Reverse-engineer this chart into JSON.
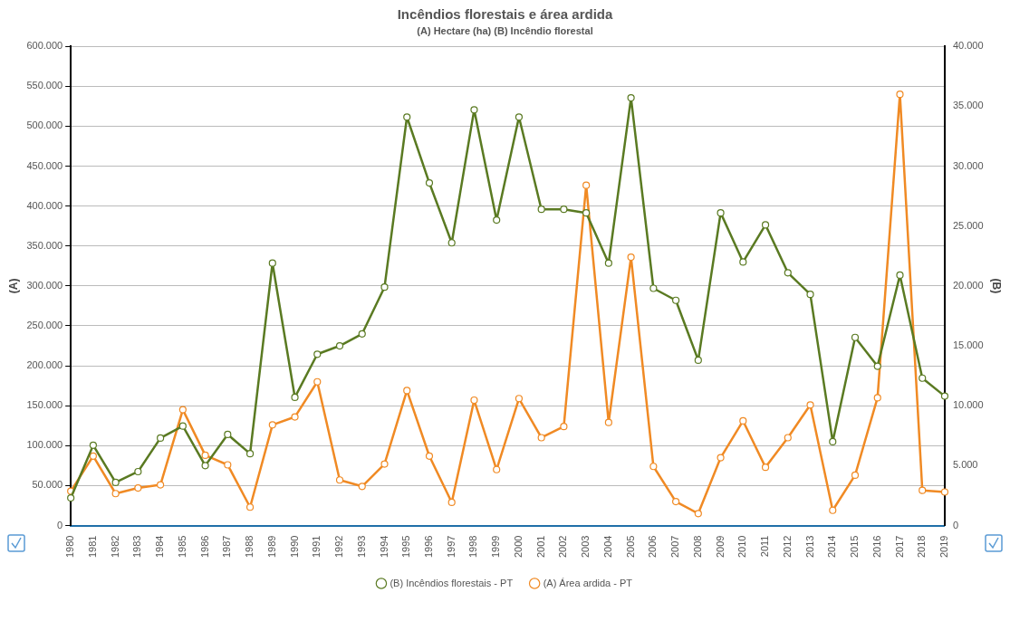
{
  "chart_data": {
    "type": "line",
    "title": "Incêndios florestais e área ardida",
    "subtitle": "(A) Hectare (ha) (B) Incêndio florestal",
    "ylabel": "(A)",
    "y2label": "(B)",
    "categories": [
      "1980",
      "1981",
      "1982",
      "1983",
      "1984",
      "1985",
      "1986",
      "1987",
      "1988",
      "1989",
      "1990",
      "1991",
      "1992",
      "1993",
      "1994",
      "1995",
      "1996",
      "1997",
      "1998",
      "1999",
      "2000",
      "2001",
      "2002",
      "2003",
      "2004",
      "2005",
      "2006",
      "2007",
      "2008",
      "2009",
      "2010",
      "2011",
      "2012",
      "2013",
      "2014",
      "2015",
      "2016",
      "2017",
      "2018",
      "2019"
    ],
    "series": [
      {
        "name": "(A) Área ardida - PT",
        "color": "#f08a24",
        "values": [
          43000,
          87000,
          40000,
          47000,
          51000,
          145000,
          88000,
          76000,
          23000,
          126000,
          136000,
          180000,
          57000,
          49000,
          77000,
          169000,
          87000,
          29000,
          157000,
          70000,
          159000,
          110000,
          124000,
          426000,
          129000,
          336000,
          74000,
          30000,
          15000,
          85000,
          131000,
          73000,
          110000,
          151000,
          19000,
          63000,
          160000,
          540000,
          44000,
          42000
        ]
      },
      {
        "name": "(B) Incêndios florestais - PT",
        "color": "#5a7a22",
        "axis": "y2",
        "values": [
          2300,
          6700,
          3600,
          4500,
          7300,
          8300,
          5000,
          7600,
          6000,
          21900,
          10700,
          14300,
          15000,
          16000,
          19900,
          34100,
          28600,
          23600,
          34700,
          25500,
          34100,
          26400,
          26400,
          26100,
          21900,
          35700,
          19800,
          18800,
          13800,
          26100,
          22000,
          25100,
          21100,
          19300,
          7000,
          15700,
          13300,
          20900,
          12300,
          10800
        ]
      }
    ],
    "ylim": [
      0,
      600000
    ],
    "yticks": [
      0,
      {
        "value": 50000,
        "label": "50.000"
      },
      {
        "value": 100000,
        "label": "100.000"
      },
      {
        "value": 150000,
        "label": "150.000"
      },
      {
        "value": 200000,
        "label": "200.000"
      },
      {
        "value": 250000,
        "label": "250.000"
      },
      {
        "value": 300000,
        "label": "300.000"
      },
      {
        "value": 350000,
        "label": "350.000"
      },
      {
        "value": 400000,
        "label": "400.000"
      },
      {
        "value": 450000,
        "label": "450.000"
      },
      {
        "value": 500000,
        "label": "500.000"
      },
      {
        "value": 550000,
        "label": "550.000"
      },
      {
        "value": 600000,
        "label": "600.000"
      }
    ],
    "y2lim": [
      0,
      40000
    ],
    "y2ticks": [
      0,
      {
        "value": 5000,
        "label": "5.000"
      },
      {
        "value": 10000,
        "label": "10.000"
      },
      {
        "value": 15000,
        "label": "15.000"
      },
      {
        "value": 20000,
        "label": "20.000"
      },
      {
        "value": 25000,
        "label": "25.000"
      },
      {
        "value": 30000,
        "label": "30.000"
      },
      {
        "value": 35000,
        "label": "35.000"
      },
      {
        "value": 40000,
        "label": "40.000"
      }
    ],
    "grid": "y",
    "legend": "bottom",
    "marker": "circle",
    "line_style": "solid"
  }
}
